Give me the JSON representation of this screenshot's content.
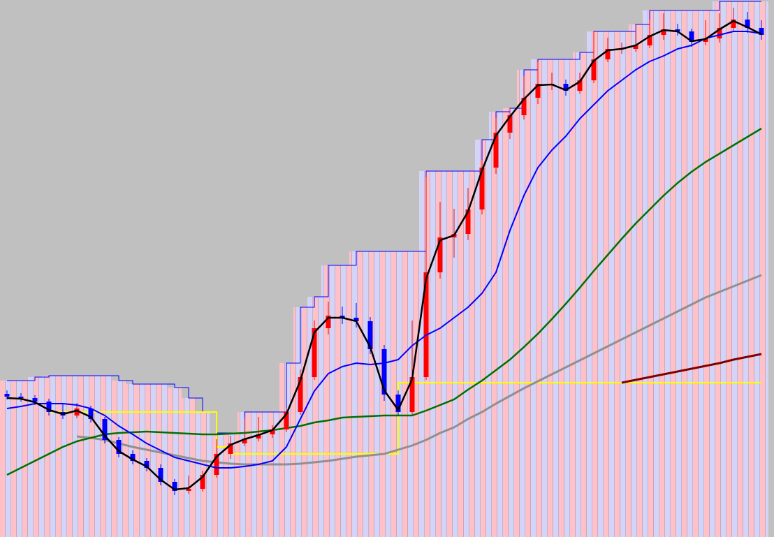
{
  "chart_data": {
    "type": "candlestick",
    "background": "#c0c0c0",
    "up_color": "#ff0000",
    "down_color": "#0000ff",
    "ylim": [
      0,
      769
    ],
    "categories": [
      null,
      null,
      null,
      null,
      null,
      null,
      null,
      null,
      null,
      null,
      null,
      null,
      null,
      null,
      null,
      null,
      null,
      null,
      null,
      null,
      null,
      null,
      null,
      null,
      null,
      null,
      null,
      null,
      null,
      null,
      null,
      null,
      null,
      null,
      null,
      null,
      null,
      null,
      null,
      null,
      null,
      null,
      null,
      null,
      null,
      null,
      null,
      null,
      null,
      null,
      null,
      null,
      null,
      null,
      null
    ],
    "open": [
      205,
      201,
      199,
      194,
      179,
      174,
      184,
      169,
      139,
      119,
      109,
      99,
      79,
      66,
      69,
      89,
      119,
      134,
      141,
      147,
      154,
      179,
      229,
      299,
      317,
      314,
      309,
      269,
      204,
      179,
      229,
      379,
      429,
      434,
      469,
      529,
      579,
      604,
      629,
      649,
      649,
      639,
      654,
      684,
      699,
      699,
      704,
      719,
      727,
      724,
      709,
      714,
      729,
      741,
      729
    ],
    "high": [
      210,
      206,
      203,
      198,
      190,
      192,
      188,
      172,
      143,
      124,
      113,
      104,
      83,
      88,
      95,
      140,
      145,
      170,
      172,
      160,
      185,
      240,
      310,
      337,
      330,
      335,
      315,
      275,
      210,
      310,
      515,
      480,
      470,
      500,
      540,
      600,
      615,
      660,
      680,
      665,
      655,
      665,
      725,
      715,
      708,
      735,
      740,
      750,
      735,
      728,
      740,
      750,
      758,
      752,
      740
    ],
    "low": [
      197,
      194,
      189,
      174,
      169,
      170,
      164,
      134,
      114,
      104,
      94,
      74,
      60,
      62,
      65,
      85,
      112,
      130,
      137,
      142,
      150,
      175,
      225,
      290,
      305,
      300,
      262,
      195,
      174,
      175,
      225,
      370,
      400,
      425,
      462,
      520,
      570,
      598,
      620,
      640,
      632,
      635,
      650,
      680,
      692,
      695,
      700,
      712,
      718,
      702,
      704,
      708,
      725,
      722,
      712
    ],
    "close": [
      201,
      199,
      194,
      179,
      174,
      184,
      169,
      139,
      119,
      109,
      99,
      79,
      66,
      69,
      89,
      119,
      134,
      141,
      147,
      154,
      179,
      229,
      299,
      317,
      314,
      309,
      269,
      204,
      179,
      229,
      379,
      429,
      434,
      469,
      529,
      579,
      604,
      629,
      649,
      649,
      639,
      654,
      684,
      699,
      699,
      704,
      719,
      727,
      724,
      709,
      714,
      729,
      741,
      729,
      719
    ],
    "series": [
      {
        "color": "#0000ff",
        "width": 1,
        "style": "step",
        "values": [
          224,
          224,
          229,
          231,
          231,
          231,
          231,
          231,
          224,
          219,
          219,
          219,
          214,
          199,
          179,
          149,
          149,
          179,
          179,
          179,
          249,
          329,
          344,
          389,
          389,
          409,
          409,
          409,
          409,
          409,
          524,
          524,
          524,
          524,
          569,
          609,
          614,
          669,
          684,
          684,
          684,
          694,
          724,
          724,
          724,
          734,
          754,
          754,
          754,
          754,
          754,
          767,
          767,
          767,
          767
        ]
      },
      {
        "color": "#ffff00",
        "width": 2,
        "style": "step",
        "values": [
          null,
          null,
          null,
          179,
          179,
          179,
          179,
          179,
          179,
          179,
          179,
          179,
          179,
          179,
          179,
          129,
          119,
          119,
          119,
          119,
          119,
          119,
          119,
          119,
          119,
          119,
          119,
          119,
          221,
          221,
          221,
          221,
          221,
          221,
          221,
          221,
          221,
          221,
          221,
          221,
          221,
          221,
          221,
          221,
          221,
          221,
          221,
          221,
          221,
          221,
          221,
          221,
          221,
          221,
          221
        ]
      },
      {
        "color": "#909090",
        "width": 3,
        "style": "line",
        "values": [
          null,
          null,
          null,
          null,
          null,
          144,
          142,
          139,
          134,
          129,
          125,
          121,
          117,
          113,
          109,
          107,
          105,
          104,
          104,
          104,
          104,
          105,
          107,
          109,
          112,
          115,
          117,
          119,
          125,
          131,
          139,
          149,
          157,
          169,
          179,
          191,
          202,
          213,
          223,
          233,
          243,
          253,
          263,
          273,
          283,
          293,
          303,
          313,
          323,
          333,
          343,
          351,
          359,
          367,
          375
        ]
      },
      {
        "color": "#800000",
        "width": 3,
        "style": "line",
        "values": [
          null,
          null,
          null,
          null,
          null,
          null,
          null,
          null,
          null,
          null,
          null,
          null,
          null,
          null,
          null,
          null,
          null,
          null,
          null,
          null,
          null,
          null,
          null,
          null,
          null,
          null,
          null,
          null,
          null,
          null,
          null,
          null,
          null,
          null,
          null,
          null,
          null,
          null,
          null,
          null,
          null,
          null,
          null,
          null,
          221,
          225,
          229,
          233,
          237,
          241,
          245,
          249,
          254,
          258,
          262
        ]
      },
      {
        "color": "#007000",
        "width": 2.5,
        "style": "line",
        "values": [
          89,
          99,
          109,
          119,
          129,
          137,
          142,
          147,
          149,
          150,
          151,
          150,
          149,
          148,
          147,
          147,
          148,
          149,
          151,
          153,
          156,
          159,
          164,
          167,
          171,
          172,
          173,
          174,
          174,
          174,
          181,
          189,
          197,
          211,
          224,
          239,
          254,
          272,
          291,
          312,
          334,
          357,
          381,
          404,
          427,
          449,
          469,
          489,
          507,
          523,
          537,
          549,
          561,
          573,
          585
        ]
      },
      {
        "color": "#0000ff",
        "width": 2,
        "style": "line",
        "values": [
          184,
          187,
          191,
          191,
          191,
          189,
          184,
          174,
          159,
          147,
          134,
          124,
          114,
          109,
          104,
          99,
          99,
          101,
          104,
          109,
          129,
          169,
          209,
          234,
          244,
          249,
          247,
          249,
          254,
          274,
          289,
          299,
          314,
          329,
          349,
          379,
          439,
          489,
          529,
          554,
          574,
          599,
          619,
          639,
          654,
          669,
          681,
          689,
          699,
          704,
          714,
          719,
          724,
          724,
          721
        ]
      },
      {
        "color": "#000000",
        "width": 2.5,
        "style": "line",
        "values": [
          199,
          198,
          193,
          182,
          176,
          181,
          172,
          145,
          123,
          111,
          101,
          82,
          68,
          70,
          86,
          115,
          132,
          140,
          146,
          153,
          176,
          224,
          293,
          314,
          314,
          309,
          272,
          210,
          182,
          226,
          370,
          425,
          432,
          466,
          525,
          575,
          602,
          627,
          647,
          648,
          640,
          652,
          682,
          697,
          699,
          704,
          717,
          726,
          724,
          710,
          713,
          727,
          739,
          730,
          720
        ]
      }
    ]
  }
}
